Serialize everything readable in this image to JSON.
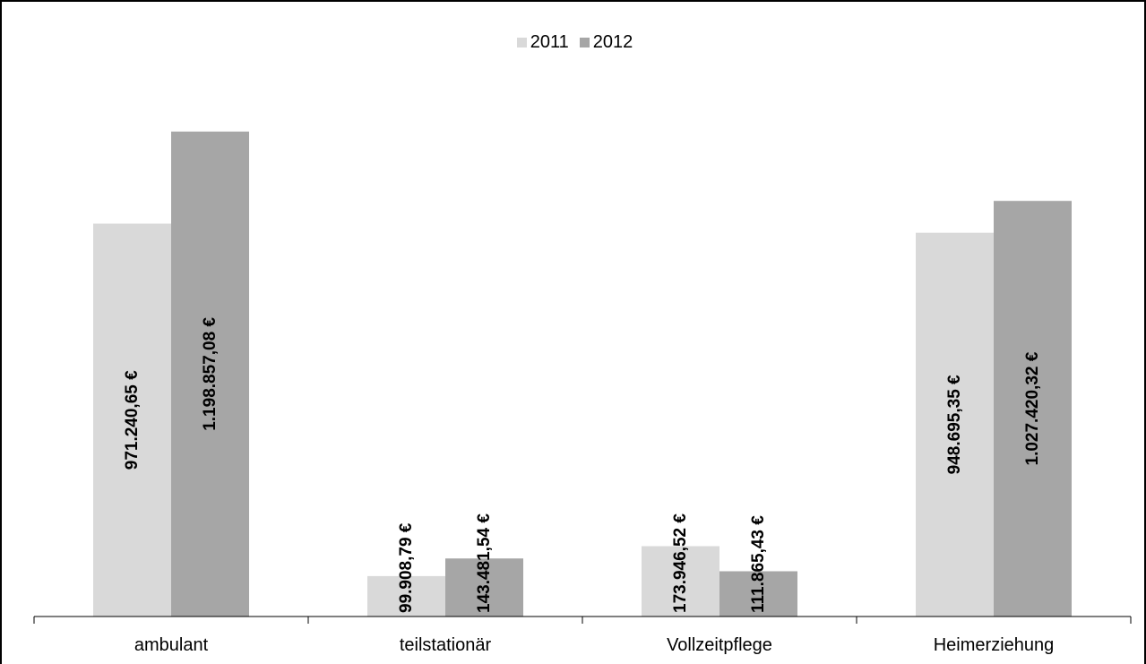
{
  "chart_data": {
    "type": "bar",
    "title": "",
    "xlabel": "",
    "ylabel": "",
    "categories": [
      "ambulant",
      "teilstationär",
      "Vollzeitpflege",
      "Heimerziehung"
    ],
    "series": [
      {
        "name": "2011",
        "color": "#d9d9d9",
        "values": [
          971240.65,
          99908.79,
          173946.52,
          948695.35
        ],
        "labels": [
          "971.240,65 €",
          "99.908,79 €",
          "173.946,52 €",
          "948.695,35 €"
        ]
      },
      {
        "name": "2012",
        "color": "#a6a6a6",
        "values": [
          1198857.08,
          143481.54,
          111865.43,
          1027420.32
        ],
        "labels": [
          "1.198.857,08 €",
          "143.481,54 €",
          "111.865,43 €",
          "1.027.420,32 €"
        ]
      }
    ],
    "ylim": [
      0,
      1400000
    ],
    "grid": false,
    "legend_position": "top-center",
    "y_axis_visible": false
  }
}
